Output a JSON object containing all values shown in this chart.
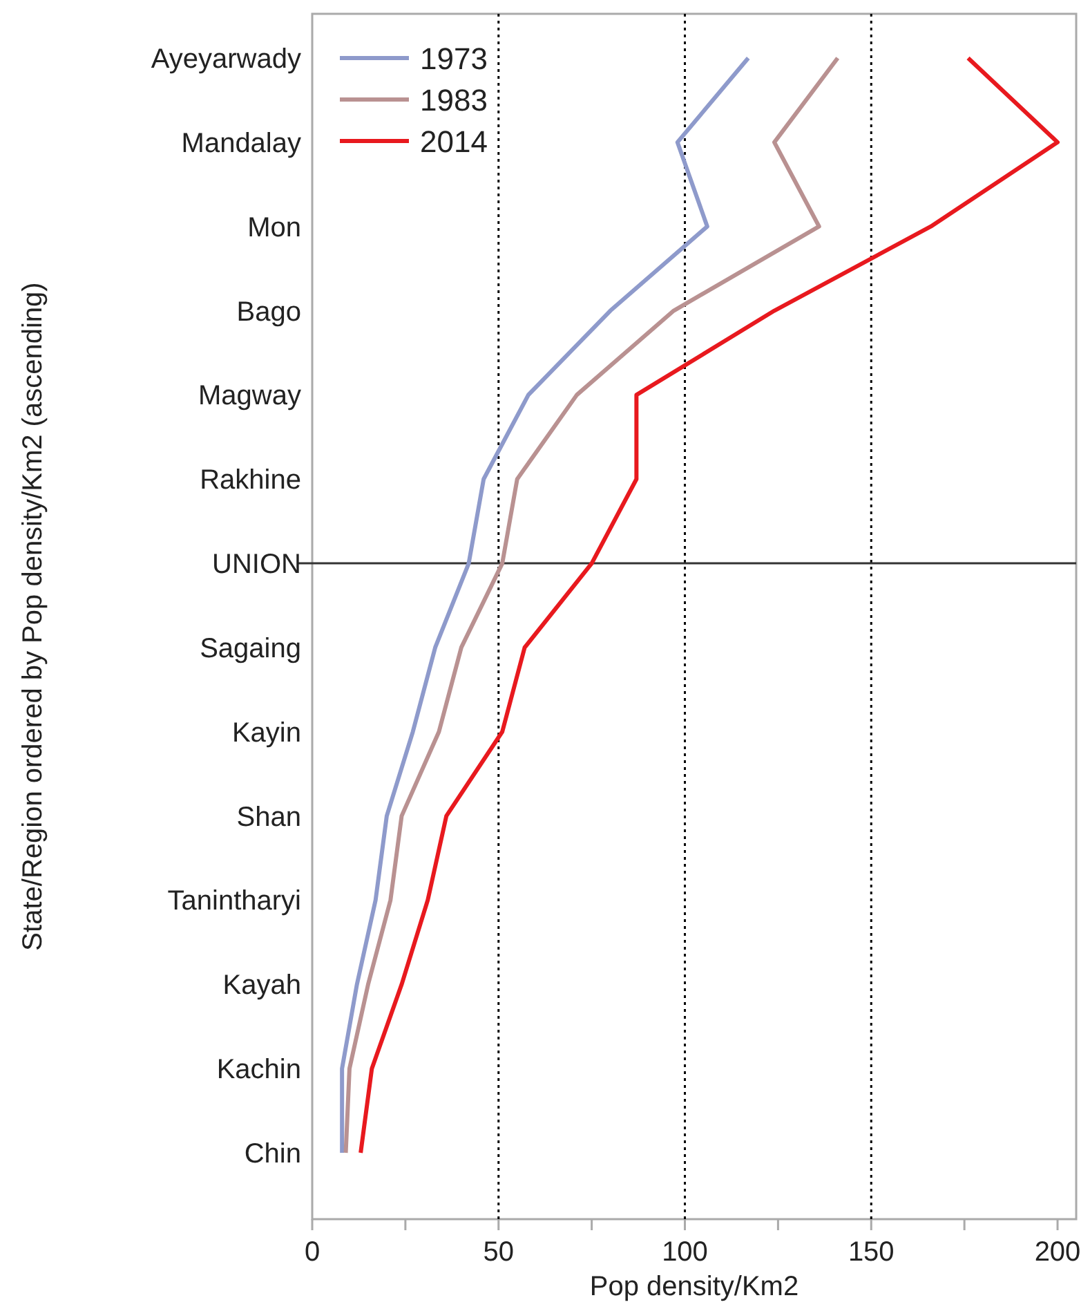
{
  "chart_data": {
    "type": "line",
    "orientation": "horizontal",
    "xlabel": "Pop density/Km2",
    "ylabel": "State/Region ordered by Pop density/Km2 (ascending)",
    "categories": [
      "Ayeyarwady",
      "Mandalay",
      "Mon",
      "Bago",
      "Magway",
      "Rakhine",
      "UNION",
      "Sagaing",
      "Kayin",
      "Shan",
      "Tanintharyi",
      "Kayah",
      "Kachin",
      "Chin"
    ],
    "series": [
      {
        "name": "1973",
        "color": "#8e9acb",
        "values": [
          117,
          98,
          106,
          80,
          58,
          46,
          42,
          33,
          27,
          20,
          17,
          12,
          8,
          8
        ]
      },
      {
        "name": "1983",
        "color": "#b99191",
        "values": [
          141,
          124,
          136,
          97,
          71,
          55,
          51,
          40,
          34,
          24,
          21,
          15,
          10,
          9
        ]
      },
      {
        "name": "2014",
        "color": "#e8191e",
        "values": [
          176,
          200,
          166,
          124,
          87,
          87,
          75,
          57,
          51,
          36,
          31,
          24,
          16,
          13
        ]
      }
    ],
    "xlim": [
      0,
      205
    ],
    "xticks": [
      0,
      {
        "value": 25,
        "label": null
      },
      50,
      {
        "value": 75,
        "label": null
      },
      100,
      {
        "value": 125,
        "label": null
      },
      150,
      {
        "value": 175,
        "label": null
      },
      200
    ],
    "ref_lines": [
      {
        "axis": "x",
        "value": 50,
        "line_style": "dotted",
        "color": "#000000"
      },
      {
        "axis": "x",
        "value": 100,
        "line_style": "dotted",
        "color": "#000000"
      },
      {
        "axis": "x",
        "value": 150,
        "line_style": "dotted",
        "color": "#000000"
      },
      {
        "axis": "y",
        "value": "UNION",
        "line_style": "solid",
        "color": "#333333"
      }
    ],
    "legend": "top left",
    "grid": false,
    "line_style": "solid"
  }
}
